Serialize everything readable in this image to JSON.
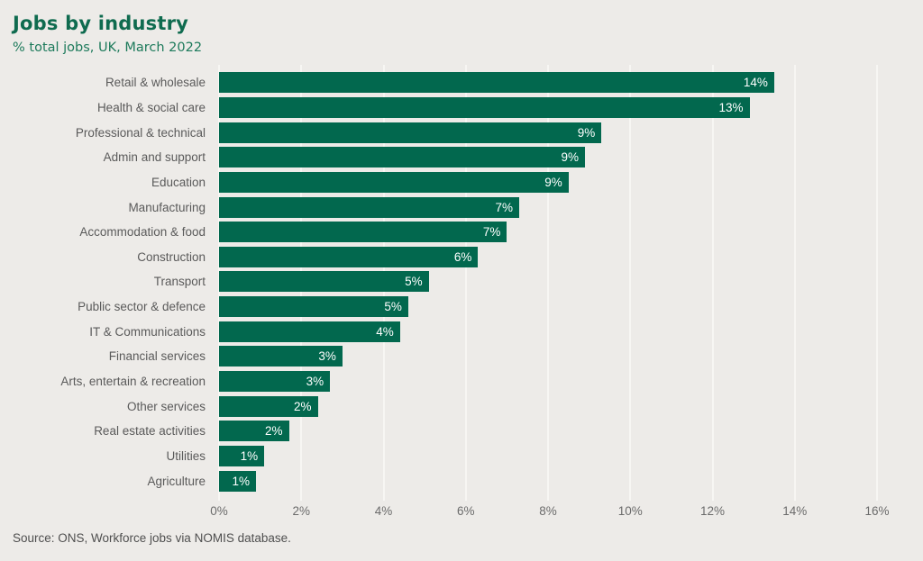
{
  "page": {
    "title": "Jobs by industry",
    "subtitle": "% total jobs, UK, March 2022",
    "source": "Source: ONS, Workforce jobs via NOMIS database.",
    "colors": {
      "background": "#edebe8",
      "bar": "#02684e",
      "title": "#0f6b4f",
      "subtitle": "#1d7a5b",
      "gridline": "#f7f6f3",
      "category_label": "#5a5a5a",
      "value_label": "#ffffff"
    }
  },
  "chart_data": {
    "type": "bar",
    "orientation": "horizontal",
    "title": "Jobs by industry",
    "subtitle": "% total jobs, UK, March 2022",
    "xlabel": "",
    "ylabel": "",
    "xlim": [
      0,
      16
    ],
    "grid": true,
    "x_ticks": [
      "0%",
      "2%",
      "4%",
      "6%",
      "8%",
      "10%",
      "12%",
      "14%",
      "16%"
    ],
    "categories": [
      "Retail & wholesale",
      "Health & social care",
      "Professional & technical",
      "Admin and support",
      "Education",
      "Manufacturing",
      "Accommodation & food",
      "Construction",
      "Transport",
      "Public sector & defence",
      "IT & Communications",
      "Financial services",
      "Arts, entertain & recreation",
      "Other services",
      "Real estate activities",
      "Utilities",
      "Agriculture"
    ],
    "values": [
      13.5,
      12.9,
      9.3,
      8.9,
      8.5,
      7.3,
      7.0,
      6.3,
      5.1,
      4.6,
      4.4,
      3.0,
      2.7,
      2.4,
      1.7,
      1.1,
      0.9
    ],
    "bar_labels": [
      "14%",
      "13%",
      "9%",
      "9%",
      "9%",
      "7%",
      "7%",
      "6%",
      "5%",
      "5%",
      "4%",
      "3%",
      "3%",
      "2%",
      "2%",
      "1%",
      "1%"
    ],
    "source": "Source: ONS, Workforce jobs via NOMIS database."
  }
}
